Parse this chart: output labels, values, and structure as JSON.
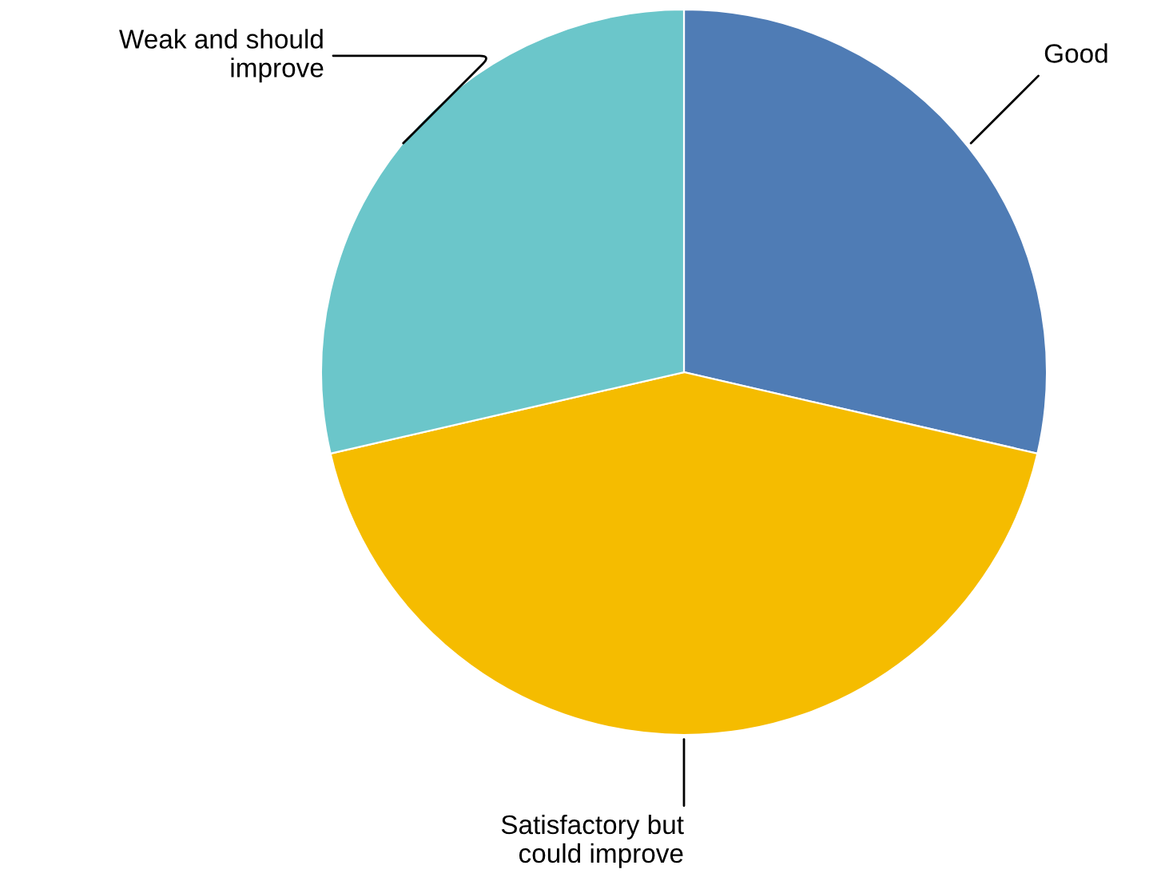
{
  "chart_data": {
    "type": "pie",
    "categories": [
      "Good",
      "Satisfactory but\ncould improve",
      "Weak and should\nimprove"
    ],
    "values": [
      28.6,
      42.8,
      28.6
    ],
    "colors": [
      "#4f7cb5",
      "#f5bc00",
      "#6bc6ca"
    ],
    "legend": false
  }
}
